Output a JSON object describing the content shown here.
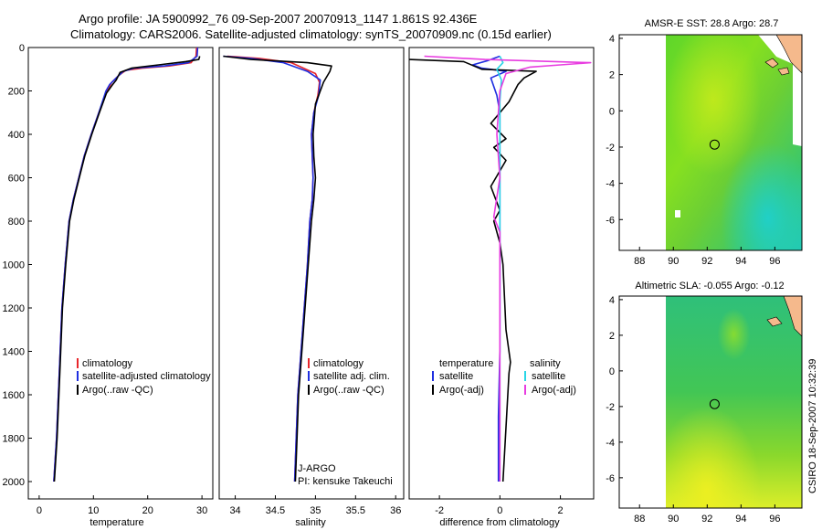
{
  "header": {
    "line1": "Argo profile: JA 5900992_76 09-Sep-2007 20070913_1147 1.861S 92.436E",
    "line2": "Climatology: CARS2006. Satellite-adjusted climatology: synTS_20070909.nc (0.15d earlier)"
  },
  "side_stamp": "CSIRO 18-Sep-2007 10:32:39",
  "colors": {
    "climatology": "#e8262b",
    "satellite": "#1f2fe0",
    "argo": "#000000",
    "sat_salinity": "#29d6e6",
    "argo_adj_salinity": "#e83ce0",
    "land": "#f5b98c"
  },
  "chart_data": [
    {
      "type": "line",
      "id": "temperature",
      "xlabel": "temperature",
      "ylabel": "",
      "xlim": [
        -2,
        32
      ],
      "ylim": [
        2080,
        0
      ],
      "xticks": [
        0,
        10,
        20,
        30
      ],
      "yticks": [
        0,
        200,
        400,
        600,
        800,
        1000,
        1200,
        1400,
        1600,
        1800,
        2000
      ],
      "legend": [
        "climatology",
        "satellite-adjusted climatology",
        "Argo(..raw -QC)"
      ],
      "series": [
        {
          "name": "climatology",
          "color": "climatology",
          "x": [
            29.0,
            28.9,
            28.0,
            24.0,
            19.0,
            16.0,
            14.6,
            13.4,
            12.5,
            11.0,
            9.6,
            8.3,
            7.3,
            6.3,
            5.5,
            4.8,
            4.2,
            3.7,
            3.2,
            2.7
          ],
          "y": [
            0,
            40,
            70,
            85,
            95,
            105,
            130,
            160,
            200,
            300,
            400,
            500,
            600,
            700,
            800,
            1000,
            1200,
            1500,
            1800,
            2000
          ]
        },
        {
          "name": "satellite-adjusted climatology",
          "color": "satellite",
          "x": [
            29.2,
            29.1,
            27.5,
            23.0,
            17.5,
            15.5,
            14.2,
            13.0,
            12.3,
            11.0,
            9.6,
            8.3,
            7.3,
            6.3,
            5.5,
            4.8,
            4.2,
            3.7,
            3.2,
            2.7
          ],
          "y": [
            0,
            40,
            70,
            85,
            95,
            110,
            140,
            170,
            200,
            300,
            400,
            500,
            600,
            700,
            800,
            1000,
            1200,
            1500,
            1800,
            2000
          ]
        },
        {
          "name": "Argo(..raw -QC)",
          "color": "argo",
          "x": [
            29.6,
            29.4,
            27.0,
            22.0,
            17.0,
            14.9,
            14.2,
            13.4,
            12.4,
            11.1,
            9.7,
            8.4,
            7.4,
            6.4,
            5.6,
            4.9,
            4.3,
            3.8,
            3.3,
            2.8
          ],
          "y": [
            40,
            55,
            65,
            80,
            95,
            115,
            150,
            175,
            210,
            300,
            400,
            500,
            600,
            700,
            800,
            1000,
            1200,
            1500,
            1800,
            2000
          ]
        }
      ]
    },
    {
      "type": "line",
      "id": "salinity",
      "xlabel": "salinity",
      "ylabel": "",
      "xlim": [
        33.8,
        36.1
      ],
      "ylim": [
        2080,
        0
      ],
      "xticks": [
        34,
        34.5,
        35,
        35.5,
        36
      ],
      "xtick_labels": [
        "34",
        "34.5",
        "35",
        "35.5",
        "36"
      ],
      "yticks": [],
      "legend": [
        "climatology",
        "satellite adj. clim.",
        "Argo(..raw -QC)"
      ],
      "annotations": [
        "J-ARGO",
        "PI: kensuke Takeuchi"
      ],
      "series": [
        {
          "name": "climatology",
          "color": "climatology",
          "x": [
            33.9,
            34.3,
            34.7,
            35.0,
            35.05,
            35.03,
            34.98,
            34.95,
            34.96,
            34.97,
            34.96,
            34.93,
            34.9,
            34.86,
            34.82,
            34.78,
            34.76,
            34.74
          ],
          "y": [
            40,
            50,
            70,
            120,
            160,
            220,
            300,
            400,
            500,
            600,
            700,
            800,
            1000,
            1200,
            1400,
            1600,
            1800,
            2000
          ]
        },
        {
          "name": "satellite adj. clim.",
          "color": "satellite",
          "x": [
            33.85,
            34.2,
            34.6,
            34.9,
            35.06,
            35.04,
            34.98,
            34.95,
            34.96,
            34.97,
            34.96,
            34.93,
            34.9,
            34.86,
            34.82,
            34.78,
            34.76,
            34.74
          ],
          "y": [
            40,
            50,
            70,
            110,
            150,
            220,
            300,
            400,
            500,
            600,
            700,
            800,
            1000,
            1200,
            1400,
            1600,
            1800,
            2000
          ]
        },
        {
          "name": "Argo(..raw -QC)",
          "color": "argo",
          "x": [
            33.85,
            34.2,
            34.9,
            35.2,
            35.18,
            35.1,
            35.0,
            34.97,
            34.98,
            35.0,
            34.98,
            34.95,
            34.91,
            34.87,
            34.83,
            34.79,
            34.77,
            34.75
          ],
          "y": [
            40,
            55,
            70,
            85,
            110,
            160,
            260,
            400,
            500,
            600,
            700,
            800,
            1000,
            1200,
            1400,
            1600,
            1800,
            2000
          ]
        }
      ]
    },
    {
      "type": "line",
      "id": "difference",
      "xlabel": "difference from climatology",
      "ylabel": "",
      "xlim": [
        -3,
        3.1
      ],
      "ylim": [
        2080,
        0
      ],
      "xticks": [
        -2,
        0,
        2
      ],
      "yticks": [],
      "legend_left_title": "temperature",
      "legend_right_title": "salinity",
      "legend_left": [
        "satellite",
        "Argo(-adj)"
      ],
      "legend_right": [
        "satellite",
        "Argo(-adj)"
      ],
      "series": [
        {
          "name": "temperature satellite",
          "color": "satellite",
          "x": [
            0.0,
            -0.4,
            -0.9,
            -0.6,
            0.2,
            -0.3,
            -0.2,
            -0.1,
            0.0,
            0.0,
            0.0,
            0.0,
            0.0,
            -0.05,
            -0.05,
            -0.05
          ],
          "y": [
            40,
            60,
            80,
            95,
            110,
            140,
            180,
            220,
            300,
            500,
            800,
            1100,
            1400,
            1700,
            1900,
            2000
          ]
        },
        {
          "name": "temperature Argo(-adj)",
          "color": "argo",
          "x": [
            -3.0,
            -1.2,
            -0.6,
            1.2,
            0.8,
            0.6,
            0.3,
            -0.3,
            0.2,
            -0.2,
            0.2,
            -0.3,
            0.0,
            -0.2,
            0.0,
            0.1,
            0.2,
            0.35,
            0.3,
            0.1
          ],
          "y": [
            55,
            65,
            100,
            110,
            140,
            170,
            250,
            350,
            420,
            460,
            520,
            640,
            750,
            800,
            900,
            1000,
            1300,
            1450,
            1500,
            2000
          ]
        },
        {
          "name": "salinity satellite",
          "color": "sat_salinity",
          "x": [
            0.0,
            0.1,
            -0.1,
            0.05,
            0.0,
            0.0,
            0.0,
            0.0,
            0.0,
            0.0
          ],
          "y": [
            40,
            70,
            100,
            150,
            250,
            500,
            800,
            1200,
            1600,
            2000
          ]
        },
        {
          "name": "salinity Argo(-adj)",
          "color": "argo_adj_salinity",
          "x": [
            -2.5,
            -0.5,
            3.0,
            2.0,
            1.0,
            0.2,
            0.0,
            -0.1,
            0.0,
            -0.2,
            0.0,
            0.0,
            0.0,
            0.0
          ],
          "y": [
            40,
            55,
            70,
            80,
            90,
            120,
            200,
            400,
            600,
            780,
            850,
            1000,
            1500,
            2000
          ]
        }
      ]
    },
    {
      "type": "heatmap",
      "id": "sst-map",
      "title": "AMSR-E SST: 28.8 Argo: 28.7",
      "xlim": [
        86.8,
        97.6
      ],
      "ylim": [
        -7.7,
        4.2
      ],
      "xticks": [
        88,
        90,
        92,
        94,
        96
      ],
      "yticks": [
        4,
        2,
        0,
        -2,
        -4,
        -6
      ],
      "profile_location": {
        "lon": 92.436,
        "lat": -1.861
      }
    },
    {
      "type": "heatmap",
      "id": "sla-map",
      "title": "Altimetric SLA: -0.055 Argo: -0.12",
      "xlim": [
        86.8,
        97.6
      ],
      "ylim": [
        -7.7,
        4.2
      ],
      "xticks": [
        88,
        90,
        92,
        94,
        96
      ],
      "yticks": [
        4,
        2,
        0,
        -2,
        -4,
        -6
      ],
      "profile_location": {
        "lon": 92.436,
        "lat": -1.861
      }
    }
  ]
}
